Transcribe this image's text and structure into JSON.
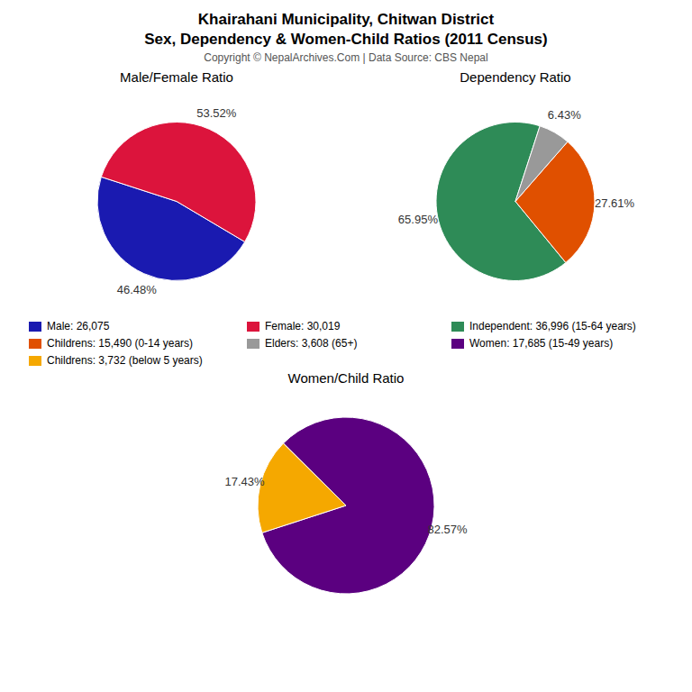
{
  "title": "Khairahani Municipality, Chitwan District",
  "subtitle": "Sex, Dependency & Women-Child Ratios (2011 Census)",
  "annotations": [
    "Copyright © NepalArchives.Com | Data Source: CBS Nepal"
  ],
  "chart_data": [
    {
      "type": "pie",
      "title": "Male/Female Ratio",
      "categories": [
        "Male: 26,075",
        "Female: 30,019"
      ],
      "values": [
        46.48,
        53.52
      ],
      "value_labels": [
        "46.48%",
        "53.52%"
      ],
      "colors": [
        "#1a1ab0",
        "#dc143c"
      ],
      "data_labels": true
    },
    {
      "type": "pie",
      "title": "Dependency Ratio",
      "categories": [
        "Independent: 36,996 (15-64 years)",
        "Childrens: 15,490 (0-14 years)",
        "Elders: 3,608 (65+)"
      ],
      "values": [
        65.95,
        27.61,
        6.43
      ],
      "value_labels": [
        "65.95%",
        "27.61%",
        "6.43%"
      ],
      "colors": [
        "#2e8b57",
        "#e05000",
        "#999999"
      ],
      "data_labels": true
    },
    {
      "type": "pie",
      "title": "Women/Child Ratio",
      "categories": [
        "Women: 17,685 (15-49 years)",
        "Childrens: 3,732 (below 5 years)"
      ],
      "values": [
        82.57,
        17.43
      ],
      "value_labels": [
        "82.57%",
        "17.43%"
      ],
      "colors": [
        "#5b0080",
        "#f5a800"
      ],
      "data_labels": true
    }
  ]
}
